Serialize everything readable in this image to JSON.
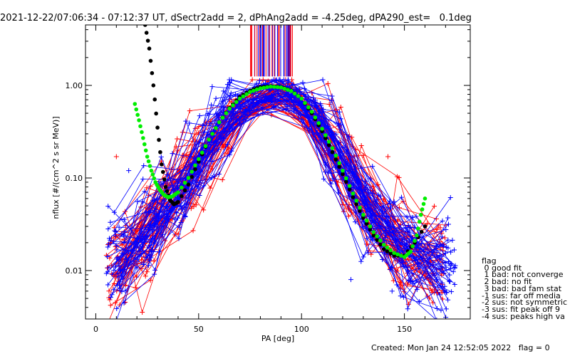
{
  "title": "2021-12-22/07:06:34 - 07:12:37 UT, dSectr2add = 2, dPhAng2add = -4.25deg, dPA290_est=   0.1deg",
  "legend": {
    "title": "flag",
    "items": [
      " 0 good fit",
      " 1 bad: not converge",
      " 2 bad: no fit",
      " 3 bad: bad fam stat",
      "-1 sus: far off media",
      "-2 sus: not symmetric",
      "-3 sus: fit peak off 9",
      "-4 sus: peaks high va"
    ]
  },
  "footer": "Created: Mon Jan 24 12:52:05 2022   flag = 0",
  "colors": {
    "red_series": "#ff0000",
    "blue_series": "#0000ff",
    "fit_black": "#000000",
    "fit_green": "#00ee00"
  },
  "chart_data": {
    "type": "line",
    "xlabel": "PA [deg]",
    "ylabel": "nflux [#/(cm^2 s sr MeV)]",
    "xlim": [
      -5,
      182
    ],
    "ylim": [
      0.003,
      4.5
    ],
    "yscale": "log",
    "xticks": [
      0,
      50,
      100,
      150
    ],
    "yticks": [
      0.01,
      0.1,
      1.0
    ],
    "ytick_labels": [
      "0.01",
      "0.10",
      "1.00"
    ],
    "grid": false,
    "legend_position": "bottom-right, outside plot",
    "curves": {
      "black_fit": {
        "x": [
          24,
          26,
          28,
          30,
          32,
          34,
          36,
          38,
          40,
          45,
          50,
          55,
          60,
          65,
          70,
          75,
          80,
          85,
          90,
          95,
          100,
          105,
          110,
          115,
          120,
          125,
          130,
          135,
          140,
          145,
          150,
          155,
          160
        ],
        "y": [
          4.5,
          2.5,
          1.0,
          0.35,
          0.14,
          0.08,
          0.058,
          0.052,
          0.055,
          0.085,
          0.15,
          0.26,
          0.4,
          0.57,
          0.75,
          0.88,
          0.96,
          0.98,
          0.96,
          0.88,
          0.72,
          0.5,
          0.32,
          0.19,
          0.11,
          0.062,
          0.037,
          0.024,
          0.017,
          0.0145,
          0.0145,
          0.02,
          0.03
        ]
      },
      "green_fit": {
        "x": [
          19,
          21,
          23,
          25,
          27,
          29,
          31,
          33,
          35,
          37,
          40,
          45,
          50,
          55,
          60,
          65,
          70,
          75,
          80,
          85,
          90,
          95,
          100,
          105,
          110,
          115,
          120,
          125,
          130,
          135,
          140,
          145,
          150,
          153,
          156,
          158,
          160
        ],
        "y": [
          0.63,
          0.42,
          0.27,
          0.17,
          0.12,
          0.09,
          0.075,
          0.066,
          0.062,
          0.063,
          0.07,
          0.1,
          0.16,
          0.26,
          0.4,
          0.56,
          0.72,
          0.85,
          0.93,
          0.97,
          0.95,
          0.87,
          0.72,
          0.52,
          0.34,
          0.21,
          0.12,
          0.068,
          0.04,
          0.026,
          0.019,
          0.0155,
          0.014,
          0.016,
          0.024,
          0.04,
          0.06
        ]
      }
    },
    "profile_template": {
      "x": [
        10,
        18,
        25,
        32,
        40,
        50,
        60,
        70,
        80,
        90,
        100,
        110,
        120,
        130,
        140,
        150,
        160,
        170
      ],
      "y": [
        0.012,
        0.018,
        0.03,
        0.05,
        0.08,
        0.16,
        0.35,
        0.6,
        0.85,
        0.95,
        0.75,
        0.4,
        0.15,
        0.06,
        0.03,
        0.018,
        0.014,
        0.012
      ]
    },
    "series": [
      {
        "color": "red",
        "count": 55,
        "pa_range": [
          10,
          165
        ]
      },
      {
        "color": "blue",
        "count": 55,
        "pa_range": [
          10,
          170
        ]
      }
    ],
    "outliers": [
      {
        "color": "red",
        "x": 10,
        "y": 0.17
      },
      {
        "color": "red",
        "x": 142,
        "y": 0.17
      },
      {
        "color": "blue",
        "x": 16,
        "y": 0.12
      },
      {
        "color": "blue",
        "x": 124,
        "y": 0.008
      },
      {
        "color": "blue",
        "x": 144,
        "y": 0.006
      }
    ],
    "vertical_ticks": {
      "pa_range": [
        75,
        96
      ],
      "y_from": 1.25,
      "y_to": 4.5,
      "colors": [
        "blue",
        "red"
      ]
    }
  }
}
